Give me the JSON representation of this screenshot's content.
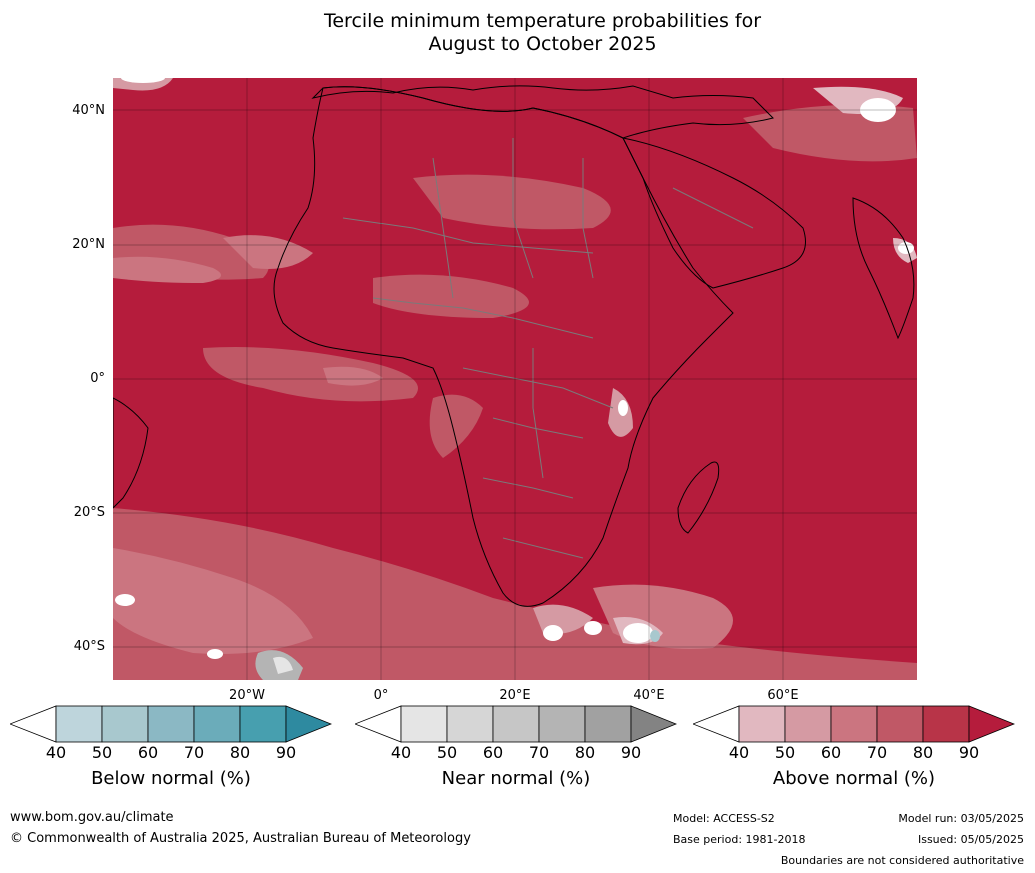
{
  "title": {
    "line1": "Tercile minimum temperature probabilities for",
    "line2": "August to October 2025"
  },
  "map": {
    "region": "Africa",
    "variable": "Minimum temperature",
    "dominant_category": "Above normal",
    "dominant_color": "#b51c3c",
    "lat_labels": [
      "40°N",
      "20°N",
      "0°",
      "20°S",
      "40°S"
    ],
    "lon_labels": [
      "20°W",
      "0°",
      "20°E",
      "40°E",
      "60°E"
    ]
  },
  "legends": [
    {
      "title": "Below normal (%)",
      "ticks": [
        "40",
        "50",
        "60",
        "70",
        "80",
        "90"
      ],
      "colors": [
        "#ffffff",
        "#bed5dc",
        "#a8c8ce",
        "#8bb8c4",
        "#6bacba",
        "#479faf",
        "#2e8aa0"
      ]
    },
    {
      "title": "Near normal (%)",
      "ticks": [
        "40",
        "50",
        "60",
        "70",
        "80",
        "90"
      ],
      "colors": [
        "#ffffff",
        "#e5e5e5",
        "#d6d6d6",
        "#c6c6c6",
        "#b4b4b4",
        "#a1a1a1",
        "#838383"
      ]
    },
    {
      "title": "Above normal (%)",
      "ticks": [
        "40",
        "50",
        "60",
        "70",
        "80",
        "90"
      ],
      "colors": [
        "#ffffff",
        "#e1b8c0",
        "#d59aa3",
        "#cb7580",
        "#c05866",
        "#b83448",
        "#b51c3c"
      ]
    }
  ],
  "footer": {
    "website": "www.bom.gov.au/climate",
    "copyright": "© Commonwealth of Australia 2025, Australian Bureau of Meteorology",
    "model": "Model: ACCESS-S2",
    "base_period": "Base period: 1981-2018",
    "model_run": "Model run: 03/05/2025",
    "issued": "Issued: 05/05/2025",
    "disclaimer": "Boundaries are not considered authoritative"
  }
}
